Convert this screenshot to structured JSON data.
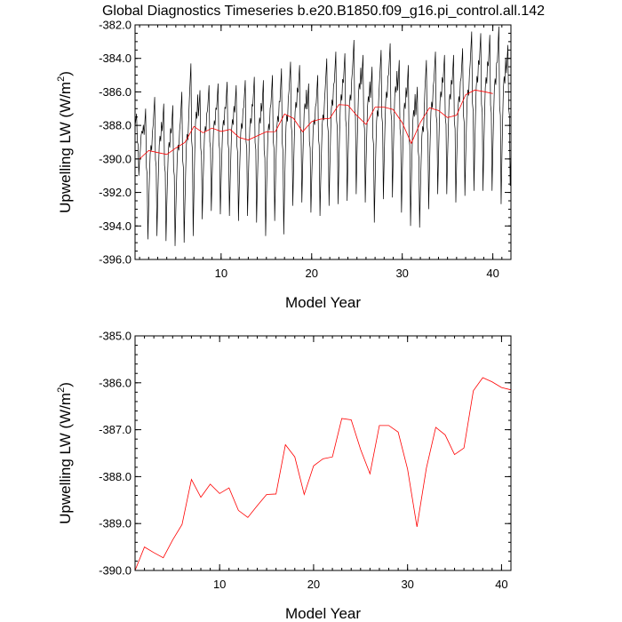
{
  "title": "Global Diagnostics Timeseries b.e20.B1850.f09_g16.pi_control.all.142",
  "colors": {
    "monthly": "#000000",
    "annual": "#ff0000"
  },
  "chart_data": [
    {
      "type": "line",
      "name": "monthly-and-annual-timeseries",
      "xlabel": "Model Year",
      "ylabel": "Upwelling LW (W/m",
      "ylabel_sup": "2",
      "ylabel_close": ")",
      "xlim": [
        0.5,
        42
      ],
      "ylim": [
        -396.0,
        -382.0
      ],
      "xticks": [
        10,
        20,
        30,
        40
      ],
      "xtick_labels": [
        "10",
        "20",
        "30",
        "40"
      ],
      "yticks": [
        -396.0,
        -394.0,
        -392.0,
        -390.0,
        -388.0,
        -386.0,
        -384.0,
        -382.0
      ],
      "ytick_labels": [
        "-396.0",
        "-394.0",
        "-392.0",
        "-390.0",
        "-388.0",
        "-386.0",
        "-384.0",
        "-382.0"
      ],
      "series": [
        {
          "name": "monthly",
          "color": "#000000",
          "seasonal_maxima": [
            -387.3,
            -387.0,
            -386.3,
            -386.7,
            -386.8,
            -386.0,
            -384.3,
            -385.9,
            -385.6,
            -385.5,
            -385.4,
            -385.6,
            -385.3,
            -385.1,
            -385.3,
            -385.0,
            -384.6,
            -384.2,
            -384.4,
            -385.5,
            -385.0,
            -384.0,
            -383.6,
            -383.7,
            -382.9,
            -383.8,
            -384.5,
            -383.5,
            -383.1,
            -384.1,
            -384.4,
            -385.7,
            -384.1,
            -383.6,
            -383.8,
            -383.8,
            -383.4,
            -382.4,
            -382.5,
            -382.6,
            -382.1,
            -383.2
          ],
          "seasonal_minima": [
            -391.0,
            -394.8,
            -394.6,
            -394.9,
            -395.2,
            -395.0,
            -394.6,
            -393.6,
            -393.1,
            -393.3,
            -393.4,
            -393.7,
            -393.4,
            -393.8,
            -394.6,
            -393.7,
            -394.5,
            -392.8,
            -392.6,
            -393.2,
            -393.4,
            -392.8,
            -392.7,
            -392.5,
            -392.1,
            -392.6,
            -393.8,
            -392.4,
            -392.3,
            -393.2,
            -394.0,
            -394.1,
            -393.0,
            -392.1,
            -392.1,
            -392.6,
            -392.2,
            -391.9,
            -391.9,
            -391.9,
            -392.7,
            -391.6
          ]
        },
        {
          "name": "annual",
          "color": "#ff0000",
          "x": [
            1,
            2,
            3,
            4,
            5,
            6,
            7,
            8,
            9,
            10,
            11,
            12,
            13,
            14,
            15,
            16,
            17,
            18,
            19,
            20,
            21,
            22,
            23,
            24,
            25,
            26,
            27,
            28,
            29,
            30,
            31,
            32,
            33,
            34,
            35,
            36,
            37,
            38,
            39,
            40,
            41
          ],
          "values": [
            -390.0,
            -389.5,
            -389.62,
            -389.73,
            -389.35,
            -389.02,
            -388.06,
            -388.44,
            -388.16,
            -388.36,
            -388.24,
            -388.72,
            -388.87,
            -388.62,
            -388.38,
            -388.37,
            -387.32,
            -387.58,
            -388.38,
            -387.77,
            -387.62,
            -387.58,
            -386.76,
            -386.79,
            -387.42,
            -387.94,
            -386.91,
            -386.91,
            -387.05,
            -387.84,
            -389.07,
            -387.82,
            -386.95,
            -387.11,
            -387.53,
            -387.39,
            -386.17,
            -385.89,
            -385.98,
            -386.1,
            null
          ]
        }
      ]
    },
    {
      "type": "line",
      "name": "annual-timeseries",
      "xlabel": "Model Year",
      "ylabel": "Upwelling LW (W/m",
      "ylabel_sup": "2",
      "ylabel_close": ")",
      "xlim": [
        1,
        41
      ],
      "ylim": [
        -390.0,
        -385.0
      ],
      "xticks": [
        10,
        20,
        30,
        40
      ],
      "xtick_labels": [
        "10",
        "20",
        "30",
        "40"
      ],
      "yticks": [
        -390.0,
        -389.0,
        -388.0,
        -387.0,
        -386.0,
        -385.0
      ],
      "ytick_labels": [
        "-390.0",
        "-389.0",
        "-388.0",
        "-387.0",
        "-386.0",
        "-385.0"
      ],
      "series": [
        {
          "name": "annual",
          "color": "#ff0000",
          "x": [
            1,
            2,
            3,
            4,
            5,
            6,
            7,
            8,
            9,
            10,
            11,
            12,
            13,
            14,
            15,
            16,
            17,
            18,
            19,
            20,
            21,
            22,
            23,
            24,
            25,
            26,
            27,
            28,
            29,
            30,
            31,
            32,
            33,
            34,
            35,
            36,
            37,
            38,
            39,
            40,
            41
          ],
          "values": [
            -390.0,
            -389.5,
            -389.62,
            -389.73,
            -389.35,
            -389.02,
            -388.06,
            -388.44,
            -388.16,
            -388.36,
            -388.24,
            -388.72,
            -388.87,
            -388.62,
            -388.38,
            -388.37,
            -387.32,
            -387.58,
            -388.38,
            -387.77,
            -387.62,
            -387.58,
            -386.76,
            -386.79,
            -387.42,
            -387.94,
            -386.91,
            -386.91,
            -387.05,
            -387.84,
            -389.07,
            -387.82,
            -386.95,
            -387.11,
            -387.53,
            -387.39,
            -386.17,
            -385.89,
            -385.98,
            -386.1,
            -386.15
          ]
        }
      ]
    }
  ]
}
